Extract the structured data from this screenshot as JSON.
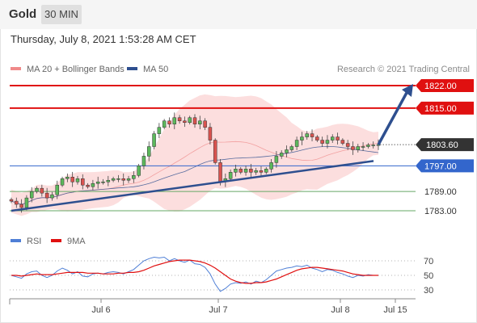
{
  "header": {
    "symbol": "Gold",
    "timeframe": "30 MIN"
  },
  "datetime": "Thursday, July 8, 2021 1:53:28 AM CET",
  "legend": {
    "bollinger": "MA 20 + Bollinger Bands",
    "ma50": "MA 50",
    "credit": "Research © 2021 Trading Central"
  },
  "rsi_legend": {
    "rsi": "RSI",
    "ma": "9MA"
  },
  "colors": {
    "resistance": "#e01010",
    "support_blue": "#3366cc",
    "support_green": "#66a866",
    "trendline": "#2e4f8f",
    "bollinger_fill": "#fbd3d3",
    "ma50": "#2e4f8f",
    "current_label": "#333333",
    "rsi": "#4f7fd6",
    "rsi_ma": "#e01010"
  },
  "chart_data": [
    {
      "type": "candlestick",
      "title": "Gold 30 MIN",
      "x_ticks": [
        "Jul 6",
        "Jul 7",
        "Jul 8",
        "Jul 15"
      ],
      "y_range": [
        1780,
        1826
      ],
      "current_price": "1803.60",
      "levels": [
        {
          "label": "1822.00",
          "value": 1822.0,
          "kind": "resistance"
        },
        {
          "label": "1815.00",
          "value": 1815.0,
          "kind": "resistance"
        },
        {
          "label": "1797.00",
          "value": 1797.0,
          "kind": "support"
        },
        {
          "label": "1789.00",
          "value": 1789.0,
          "kind": "support-secondary"
        },
        {
          "label": "1783.00",
          "value": 1783.0,
          "kind": "support-secondary"
        }
      ],
      "trendline": {
        "start": [
          "Jul 5",
          1783.0
        ],
        "end": [
          "Jul 8",
          1798.5
        ]
      },
      "forecast_arrow": {
        "from": 1803.6,
        "to": 1822.0
      },
      "close_series": [
        1786.0,
        1785.0,
        1784.0,
        1787.0,
        1789.0,
        1790.0,
        1788.5,
        1787.0,
        1788.0,
        1791.0,
        1793.0,
        1793.5,
        1792.0,
        1793.0,
        1791.0,
        1790.5,
        1791.5,
        1792.0,
        1792.0,
        1792.5,
        1793.0,
        1793.0,
        1792.5,
        1793.0,
        1794.0,
        1797.0,
        1800.0,
        1803.0,
        1807.0,
        1809.0,
        1811.0,
        1810.0,
        1812.0,
        1811.0,
        1810.5,
        1812.0,
        1810.0,
        1811.0,
        1809.0,
        1805.0,
        1798.0,
        1792.0,
        1793.0,
        1795.0,
        1796.0,
        1795.0,
        1796.0,
        1795.0,
        1795.5,
        1795.0,
        1796.0,
        1798.0,
        1800.0,
        1801.0,
        1802.0,
        1803.0,
        1805.0,
        1806.0,
        1807.0,
        1806.0,
        1805.0,
        1804.0,
        1805.0,
        1806.0,
        1805.0,
        1804.0,
        1803.0,
        1802.0,
        1803.0,
        1803.0,
        1803.5,
        1803.5,
        1803.6
      ]
    },
    {
      "type": "line",
      "title": "RSI",
      "y_ticks": [
        70,
        50,
        30
      ],
      "series": [
        {
          "name": "RSI",
          "values": [
            50,
            48,
            46,
            52,
            55,
            56,
            50,
            47,
            50,
            56,
            60,
            57,
            52,
            55,
            49,
            48,
            52,
            53,
            52,
            54,
            55,
            54,
            52,
            55,
            58,
            64,
            70,
            73,
            75,
            74,
            75,
            70,
            73,
            70,
            68,
            71,
            66,
            65,
            61,
            52,
            38,
            28,
            32,
            38,
            40,
            39,
            41,
            38,
            42,
            40,
            44,
            50,
            56,
            58,
            60,
            61,
            63,
            62,
            64,
            60,
            58,
            55,
            58,
            57,
            54,
            52,
            49,
            47,
            50,
            49,
            51,
            50,
            50
          ]
        },
        {
          "name": "9MA",
          "values": [
            50,
            50,
            49,
            50,
            51,
            52,
            51,
            51,
            51,
            52,
            53,
            54,
            54,
            54,
            54,
            53,
            53,
            53,
            52,
            52,
            52,
            53,
            53,
            54,
            54,
            55,
            57,
            60,
            63,
            65,
            67,
            69,
            70,
            71,
            71,
            71,
            70,
            69,
            67,
            64,
            60,
            55,
            50,
            45,
            42,
            40,
            39,
            39,
            40,
            40,
            41,
            43,
            45,
            48,
            51,
            54,
            57,
            59,
            60,
            61,
            61,
            60,
            59,
            58,
            57,
            56,
            54,
            52,
            51,
            50,
            50,
            50,
            50
          ]
        }
      ]
    }
  ]
}
